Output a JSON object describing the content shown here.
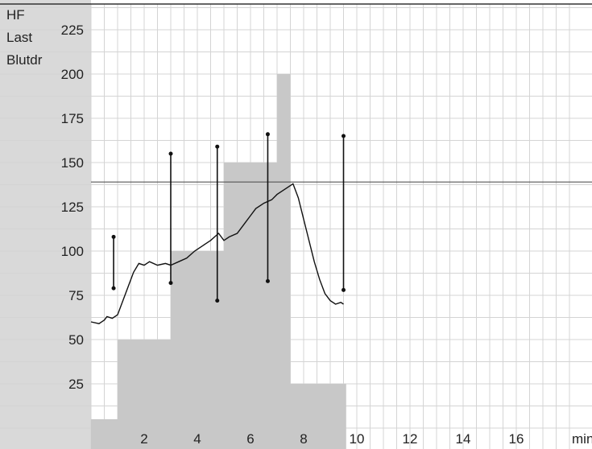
{
  "chart_data": {
    "type": "line",
    "title": "",
    "ylabel_lines": [
      "HF",
      "Last",
      "Blutdr"
    ],
    "xlabel": "min",
    "xlim": [
      0,
      18.4
    ],
    "ylim": [
      0,
      250
    ],
    "x_ticks": [
      2,
      4,
      6,
      8,
      10,
      12,
      14,
      16
    ],
    "y_ticks": [
      25,
      50,
      75,
      100,
      125,
      150,
      175,
      200,
      225
    ],
    "grid": true,
    "reference_line_y": 139,
    "load_bars": {
      "name": "Last",
      "steps": [
        {
          "x0": 0.0,
          "x1": 1.0,
          "value": 5
        },
        {
          "x0": 1.0,
          "x1": 3.0,
          "value": 50
        },
        {
          "x0": 3.0,
          "x1": 5.0,
          "value": 100
        },
        {
          "x0": 5.0,
          "x1": 7.0,
          "value": 150
        },
        {
          "x0": 7.0,
          "x1": 7.5,
          "value": 200
        },
        {
          "x0": 7.5,
          "x1": 9.6,
          "value": 25
        }
      ]
    },
    "heart_rate": {
      "name": "HF",
      "points": [
        [
          0.0,
          60
        ],
        [
          0.3,
          59
        ],
        [
          0.5,
          61
        ],
        [
          0.6,
          63
        ],
        [
          0.8,
          62
        ],
        [
          1.0,
          64
        ],
        [
          1.2,
          72
        ],
        [
          1.4,
          80
        ],
        [
          1.6,
          88
        ],
        [
          1.8,
          93
        ],
        [
          2.0,
          92
        ],
        [
          2.2,
          94
        ],
        [
          2.5,
          92
        ],
        [
          2.8,
          93
        ],
        [
          3.0,
          92
        ],
        [
          3.3,
          94
        ],
        [
          3.6,
          96
        ],
        [
          3.9,
          100
        ],
        [
          4.2,
          103
        ],
        [
          4.5,
          106
        ],
        [
          4.8,
          110
        ],
        [
          5.0,
          106
        ],
        [
          5.2,
          108
        ],
        [
          5.5,
          110
        ],
        [
          5.8,
          116
        ],
        [
          6.0,
          120
        ],
        [
          6.2,
          124
        ],
        [
          6.5,
          127
        ],
        [
          6.8,
          129
        ],
        [
          7.0,
          132
        ],
        [
          7.2,
          134
        ],
        [
          7.4,
          136
        ],
        [
          7.6,
          138
        ],
        [
          7.8,
          130
        ],
        [
          8.0,
          118
        ],
        [
          8.2,
          106
        ],
        [
          8.4,
          94
        ],
        [
          8.6,
          84
        ],
        [
          8.8,
          76
        ],
        [
          9.0,
          72
        ],
        [
          9.2,
          70
        ],
        [
          9.4,
          71
        ],
        [
          9.5,
          70
        ]
      ]
    },
    "blood_pressure": {
      "name": "Blutdr",
      "readings": [
        {
          "x": 0.85,
          "systolic": 108,
          "diastolic": 79
        },
        {
          "x": 3.0,
          "systolic": 155,
          "diastolic": 82
        },
        {
          "x": 4.75,
          "systolic": 159,
          "diastolic": 72
        },
        {
          "x": 6.65,
          "systolic": 166,
          "diastolic": 83
        },
        {
          "x": 9.5,
          "systolic": 165,
          "diastolic": 78
        }
      ]
    }
  },
  "colors": {
    "background": "#ffffff",
    "grid": "#d4d4d4",
    "left_band": "#d9d9d9",
    "load_fill": "#c8c8c8",
    "heart_rate_line": "#111111",
    "bp_marks": "#111111",
    "reference_line": "#555555"
  }
}
